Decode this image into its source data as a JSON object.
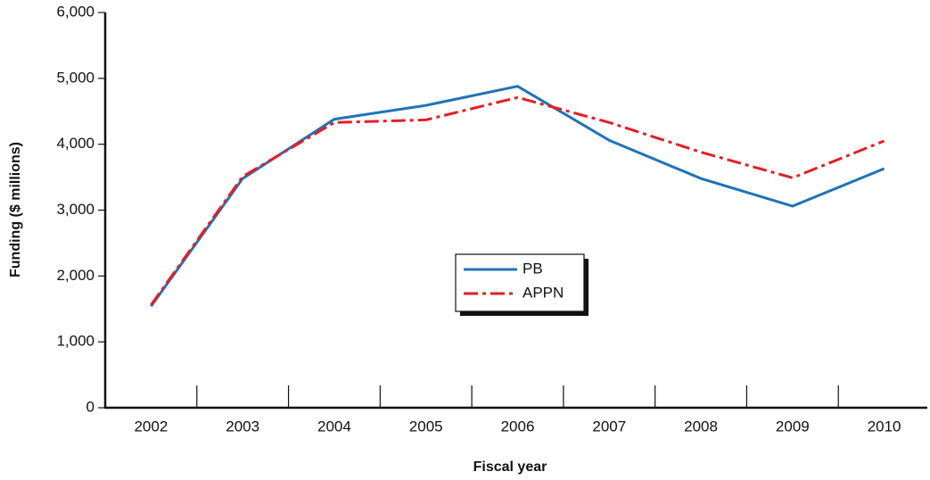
{
  "chart_data": {
    "type": "line",
    "categories": [
      "2002",
      "2003",
      "2004",
      "2005",
      "2006",
      "2007",
      "2008",
      "2009",
      "2010"
    ],
    "series": [
      {
        "name": "PB",
        "color": "#1f73b7",
        "values": [
          1540,
          3480,
          4380,
          4590,
          4880,
          4060,
          3480,
          3060,
          3630
        ]
      },
      {
        "name": "APPN",
        "color": "#e31e26",
        "values": [
          1560,
          3510,
          4330,
          4370,
          4710,
          4330,
          3880,
          3490,
          4050
        ]
      }
    ],
    "ylim": [
      0,
      6000
    ],
    "yticks": [
      0,
      {
        "value": 1000,
        "label": "1,000"
      },
      {
        "value": 2000,
        "label": "2,000"
      },
      {
        "value": 3000,
        "label": "3,000"
      },
      {
        "value": 4000,
        "label": "4,000"
      },
      {
        "value": 5000,
        "label": "5,000"
      },
      {
        "value": 6000,
        "label": "6,000"
      }
    ],
    "ylabel": "Funding ($ millions)",
    "xlabel": "Fiscal year",
    "grid": false
  }
}
